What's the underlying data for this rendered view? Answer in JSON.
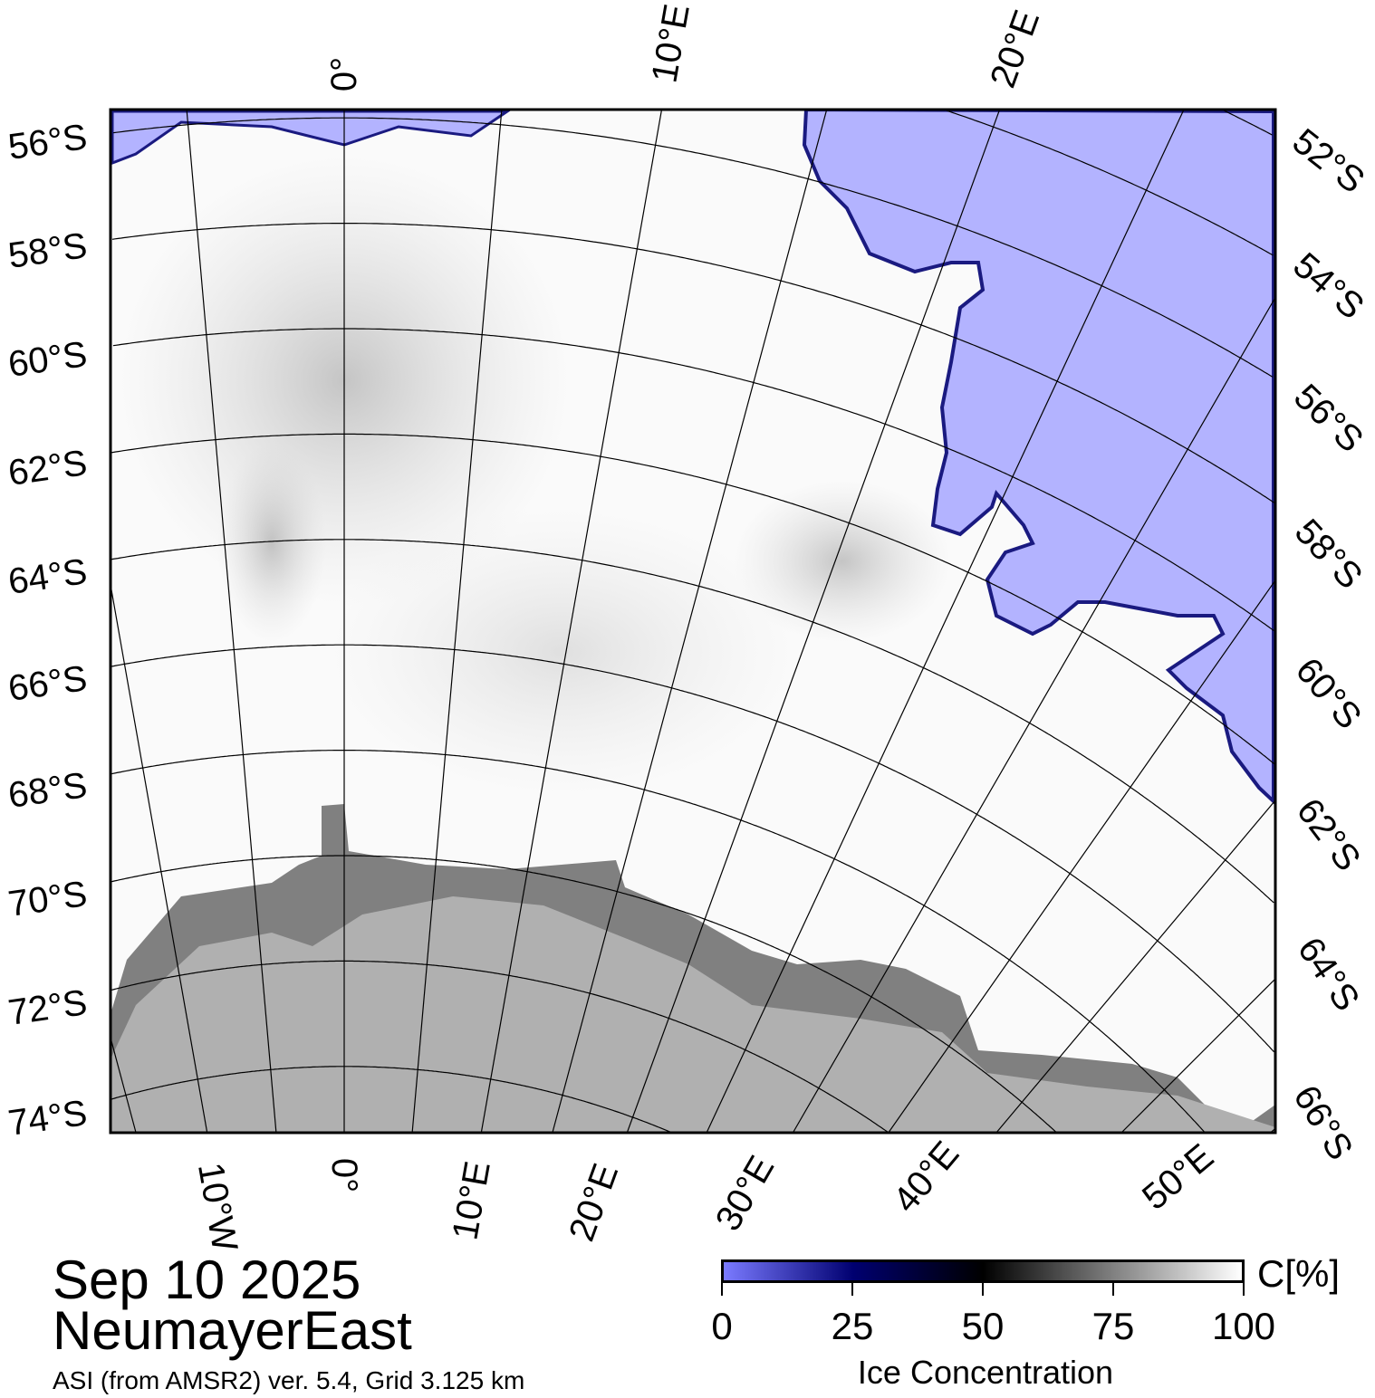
{
  "map": {
    "title_date": "Sep 10 2025",
    "region": "NeumayerEast",
    "source": "ASI (from AMSR2) ver. 5.4,  Grid 3.125 km",
    "colors": {
      "open_water": "#b3b3ff",
      "land": "#b0b0b0",
      "ice_shelf": "#808080",
      "ice": "#ffffff"
    },
    "left_lat_labels": [
      "56°S",
      "58°S",
      "60°S",
      "62°S",
      "64°S",
      "66°S",
      "68°S",
      "70°S",
      "72°S",
      "74°S"
    ],
    "right_lat_labels": [
      "52°S",
      "54°S",
      "56°S",
      "58°S",
      "60°S",
      "62°S",
      "64°S",
      "66°S"
    ],
    "top_lon_labels": [
      "0°",
      "10°E",
      "20°E"
    ],
    "bottom_lon_labels": [
      "10°W",
      "0°",
      "10°E",
      "20°E",
      "30°E",
      "40°E",
      "50°E"
    ]
  },
  "colorbar": {
    "unit": "C[%]",
    "title": "Ice Concentration",
    "ticks": [
      "0",
      "25",
      "50",
      "75",
      "100"
    ],
    "range": [
      0,
      100
    ],
    "stops": [
      "#7a7aff",
      "#000070",
      "#000000",
      "#ffffff"
    ]
  }
}
